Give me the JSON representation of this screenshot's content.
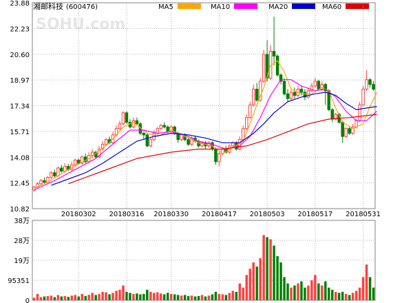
{
  "header": {
    "stock_name": "湘邮科技",
    "stock_code": "(600476)",
    "watermark": "SOHU.com"
  },
  "legend": [
    {
      "label": "MA5",
      "color": "#FFA500"
    },
    {
      "label": "MA10",
      "color": "#FF00FF"
    },
    {
      "label": "MA20",
      "color": "#0000CC"
    },
    {
      "label": "MA60",
      "color": "#E00000"
    }
  ],
  "colors": {
    "up": "#FF4040",
    "down": "#008000",
    "grid": "#B0B0B0",
    "frame": "#808080"
  },
  "chart_data": [
    {
      "type": "candlestick",
      "title": "",
      "ylim": [
        10.82,
        23.88
      ],
      "y_ticks": [
        "23.88",
        "22.23",
        "20.60",
        "18.97",
        "17.34",
        "15.71",
        "14.08",
        "12.45",
        "10.82"
      ],
      "x_ticks": [
        {
          "label": "20180302",
          "index": 13
        },
        {
          "label": "20180316",
          "index": 27
        },
        {
          "label": "20180330",
          "index": 40
        },
        {
          "label": "20180417",
          "index": 54
        },
        {
          "label": "20180503",
          "index": 68
        },
        {
          "label": "20180517",
          "index": 82
        },
        {
          "label": "20180531",
          "index": 96
        }
      ],
      "candles": [
        [
          12.0,
          12.2,
          11.9,
          12.25
        ],
        [
          12.2,
          12.4,
          12.1,
          12.5
        ],
        [
          12.4,
          12.6,
          12.3,
          12.7
        ],
        [
          12.6,
          12.5,
          12.4,
          12.8
        ],
        [
          12.5,
          12.8,
          12.45,
          12.9
        ],
        [
          12.8,
          13.1,
          12.7,
          13.2
        ],
        [
          13.1,
          12.9,
          12.8,
          13.3
        ],
        [
          12.9,
          13.4,
          12.85,
          13.5
        ],
        [
          13.4,
          13.2,
          13.1,
          13.6
        ],
        [
          13.2,
          13.5,
          13.1,
          13.7
        ],
        [
          13.5,
          13.3,
          13.2,
          13.65
        ],
        [
          13.3,
          13.6,
          13.2,
          13.8
        ],
        [
          13.6,
          13.9,
          13.5,
          14.0
        ],
        [
          13.9,
          13.7,
          13.6,
          14.0
        ],
        [
          13.7,
          14.1,
          13.6,
          14.2
        ],
        [
          14.1,
          13.8,
          13.7,
          14.3
        ],
        [
          13.8,
          14.2,
          13.7,
          14.4
        ],
        [
          14.2,
          14.4,
          14.0,
          14.6
        ],
        [
          14.4,
          14.1,
          14.0,
          14.5
        ],
        [
          14.1,
          14.6,
          14.0,
          14.8
        ],
        [
          14.6,
          14.9,
          14.5,
          15.1
        ],
        [
          14.9,
          15.2,
          14.8,
          15.3
        ],
        [
          15.2,
          15.0,
          14.9,
          15.4
        ],
        [
          15.0,
          15.5,
          14.9,
          15.7
        ],
        [
          15.5,
          15.9,
          15.4,
          16.1
        ],
        [
          15.9,
          16.2,
          15.8,
          16.4
        ],
        [
          16.2,
          16.9,
          16.1,
          17.0
        ],
        [
          16.9,
          16.3,
          16.2,
          17.0
        ],
        [
          16.3,
          16.0,
          15.9,
          16.5
        ],
        [
          16.0,
          16.4,
          15.9,
          16.6
        ],
        [
          16.4,
          16.2,
          16.1,
          16.6
        ],
        [
          16.2,
          15.6,
          15.5,
          16.3
        ],
        [
          15.6,
          15.5,
          15.2,
          15.7
        ],
        [
          15.5,
          14.8,
          14.7,
          15.6
        ],
        [
          14.8,
          15.2,
          14.7,
          15.3
        ],
        [
          15.2,
          15.6,
          15.1,
          15.8
        ],
        [
          15.6,
          15.9,
          15.5,
          16.0
        ],
        [
          15.9,
          16.1,
          15.8,
          16.2
        ],
        [
          16.1,
          16.0,
          15.9,
          16.3
        ],
        [
          16.0,
          15.7,
          15.6,
          16.1
        ],
        [
          15.7,
          16.0,
          15.6,
          16.1
        ],
        [
          16.0,
          15.6,
          15.5,
          16.1
        ],
        [
          15.6,
          15.2,
          15.0,
          15.7
        ],
        [
          15.2,
          15.5,
          15.1,
          15.6
        ],
        [
          15.5,
          15.2,
          15.1,
          15.6
        ],
        [
          15.2,
          14.9,
          14.8,
          15.3
        ],
        [
          14.9,
          15.3,
          14.8,
          15.4
        ],
        [
          15.3,
          15.1,
          15.0,
          15.4
        ],
        [
          15.1,
          14.8,
          14.7,
          15.2
        ],
        [
          14.8,
          15.0,
          14.7,
          15.1
        ],
        [
          15.0,
          14.8,
          14.6,
          15.1
        ],
        [
          14.8,
          15.0,
          14.7,
          15.1
        ],
        [
          15.0,
          14.6,
          14.5,
          15.1
        ],
        [
          14.6,
          13.8,
          13.6,
          14.7
        ],
        [
          13.8,
          14.3,
          13.5,
          14.4
        ],
        [
          14.3,
          14.6,
          14.2,
          14.7
        ],
        [
          14.6,
          14.4,
          14.3,
          14.8
        ],
        [
          14.4,
          14.8,
          14.3,
          14.9
        ],
        [
          14.8,
          15.0,
          14.7,
          15.1
        ],
        [
          15.0,
          14.6,
          14.5,
          15.1
        ],
        [
          14.6,
          15.2,
          14.5,
          15.4
        ],
        [
          15.2,
          15.9,
          15.1,
          16.1
        ],
        [
          15.9,
          16.6,
          15.8,
          16.8
        ],
        [
          16.6,
          17.4,
          16.5,
          17.6
        ],
        [
          17.4,
          18.4,
          17.3,
          18.7
        ],
        [
          18.4,
          17.7,
          17.6,
          18.8
        ],
        [
          17.7,
          18.9,
          17.6,
          19.1
        ],
        [
          18.9,
          20.6,
          18.8,
          20.9
        ],
        [
          20.6,
          19.1,
          18.9,
          21.5
        ],
        [
          19.1,
          20.8,
          19.0,
          21.2
        ],
        [
          20.8,
          20.5,
          19.9,
          23.0
        ],
        [
          20.5,
          19.3,
          19.2,
          20.6
        ],
        [
          19.3,
          18.9,
          18.7,
          19.4
        ],
        [
          18.9,
          18.1,
          18.0,
          19.1
        ],
        [
          18.1,
          17.8,
          17.6,
          18.4
        ],
        [
          17.8,
          18.2,
          17.7,
          18.4
        ],
        [
          18.2,
          18.0,
          17.8,
          18.5
        ],
        [
          18.0,
          18.4,
          17.9,
          18.6
        ],
        [
          18.4,
          18.2,
          18.0,
          18.6
        ],
        [
          18.2,
          17.9,
          17.7,
          18.4
        ],
        [
          17.9,
          18.3,
          17.8,
          18.5
        ],
        [
          18.3,
          18.6,
          18.2,
          18.8
        ],
        [
          18.6,
          18.9,
          18.5,
          19.1
        ],
        [
          18.9,
          18.4,
          18.3,
          19.0
        ],
        [
          18.4,
          18.7,
          18.3,
          18.9
        ],
        [
          18.7,
          18.3,
          17.4,
          18.8
        ],
        [
          18.3,
          17.1,
          17.0,
          18.4
        ],
        [
          17.1,
          16.5,
          16.3,
          17.2
        ],
        [
          16.5,
          16.8,
          16.4,
          16.9
        ],
        [
          16.8,
          16.3,
          16.2,
          16.9
        ],
        [
          16.3,
          15.4,
          15.0,
          16.4
        ],
        [
          15.4,
          15.9,
          15.3,
          16.0
        ],
        [
          15.9,
          15.6,
          15.5,
          16.0
        ],
        [
          15.6,
          16.0,
          15.5,
          16.2
        ],
        [
          16.0,
          16.4,
          15.9,
          16.5
        ],
        [
          16.4,
          17.4,
          16.3,
          17.6
        ],
        [
          17.4,
          18.4,
          17.3,
          18.6
        ],
        [
          18.4,
          19.0,
          18.3,
          19.6
        ],
        [
          19.0,
          18.7,
          18.5,
          19.1
        ],
        [
          18.7,
          18.4,
          18.3,
          18.9
        ]
      ],
      "ma": {
        "MA5": [
          [
            0,
            12.1
          ],
          [
            4,
            12.5
          ],
          [
            10,
            13.3
          ],
          [
            16,
            14.0
          ],
          [
            22,
            15.0
          ],
          [
            26,
            16.0
          ],
          [
            29,
            16.3
          ],
          [
            33,
            15.6
          ],
          [
            36,
            15.4
          ],
          [
            40,
            15.8
          ],
          [
            44,
            15.4
          ],
          [
            48,
            15.0
          ],
          [
            52,
            14.8
          ],
          [
            55,
            14.3
          ],
          [
            58,
            14.7
          ],
          [
            61,
            15.1
          ],
          [
            63,
            16.2
          ],
          [
            65,
            17.4
          ],
          [
            67,
            18.5
          ],
          [
            69,
            19.9
          ],
          [
            71,
            20.2
          ],
          [
            73,
            19.5
          ],
          [
            75,
            18.4
          ],
          [
            78,
            18.1
          ],
          [
            81,
            18.1
          ],
          [
            84,
            18.5
          ],
          [
            86,
            18.3
          ],
          [
            88,
            17.2
          ],
          [
            90,
            16.3
          ],
          [
            93,
            15.9
          ],
          [
            96,
            16.2
          ],
          [
            98,
            17.3
          ],
          [
            100,
            18.2
          ]
        ],
        "MA10": [
          [
            0,
            12.0
          ],
          [
            6,
            12.6
          ],
          [
            12,
            13.3
          ],
          [
            18,
            14.0
          ],
          [
            24,
            15.1
          ],
          [
            28,
            15.8
          ],
          [
            32,
            15.8
          ],
          [
            36,
            15.6
          ],
          [
            40,
            15.7
          ],
          [
            44,
            15.5
          ],
          [
            48,
            15.1
          ],
          [
            52,
            14.9
          ],
          [
            56,
            14.6
          ],
          [
            60,
            14.8
          ],
          [
            63,
            15.4
          ],
          [
            66,
            16.6
          ],
          [
            69,
            18.0
          ],
          [
            72,
            19.0
          ],
          [
            75,
            19.0
          ],
          [
            78,
            18.6
          ],
          [
            82,
            18.3
          ],
          [
            85,
            18.4
          ],
          [
            88,
            17.9
          ],
          [
            91,
            17.0
          ],
          [
            94,
            16.4
          ],
          [
            97,
            16.4
          ],
          [
            100,
            17.0
          ]
        ],
        "MA20": [
          [
            5,
            12.3
          ],
          [
            10,
            12.7
          ],
          [
            15,
            13.1
          ],
          [
            20,
            13.7
          ],
          [
            25,
            14.4
          ],
          [
            30,
            15.1
          ],
          [
            35,
            15.4
          ],
          [
            40,
            15.6
          ],
          [
            45,
            15.5
          ],
          [
            50,
            15.3
          ],
          [
            55,
            15.0
          ],
          [
            60,
            15.0
          ],
          [
            64,
            15.6
          ],
          [
            67,
            16.2
          ],
          [
            70,
            16.9
          ],
          [
            74,
            17.6
          ],
          [
            78,
            17.9
          ],
          [
            82,
            18.1
          ],
          [
            85,
            18.2
          ],
          [
            88,
            18.0
          ],
          [
            91,
            17.5
          ],
          [
            94,
            17.1
          ],
          [
            97,
            17.2
          ],
          [
            100,
            17.3
          ]
        ],
        "MA60": [
          [
            10,
            12.4
          ],
          [
            20,
            13.2
          ],
          [
            30,
            14.0
          ],
          [
            40,
            14.4
          ],
          [
            48,
            14.6
          ],
          [
            55,
            14.6
          ],
          [
            62,
            14.8
          ],
          [
            68,
            15.2
          ],
          [
            74,
            15.7
          ],
          [
            80,
            16.2
          ],
          [
            86,
            16.5
          ],
          [
            92,
            16.6
          ],
          [
            100,
            16.8
          ]
        ]
      }
    },
    {
      "type": "bar",
      "title": "",
      "y_ticks": [
        "38万",
        "28万",
        "19万",
        "95351",
        "0"
      ],
      "ylim": [
        0,
        380000
      ],
      "volumes": [
        12000,
        30000,
        15000,
        18000,
        20000,
        22000,
        15000,
        25000,
        18000,
        20000,
        16000,
        22000,
        25000,
        18000,
        30000,
        20000,
        26000,
        35000,
        25000,
        30000,
        40000,
        38000,
        28000,
        35000,
        45000,
        50000,
        70000,
        40000,
        35000,
        30000,
        32000,
        28000,
        30000,
        50000,
        40000,
        35000,
        38000,
        32000,
        28000,
        35000,
        30000,
        28000,
        25000,
        22000,
        25000,
        20000,
        22000,
        18000,
        20000,
        25000,
        18000,
        22000,
        28000,
        40000,
        30000,
        28000,
        25000,
        35000,
        45000,
        40000,
        80000,
        60000,
        120000,
        150000,
        180000,
        160000,
        200000,
        310000,
        300000,
        290000,
        260000,
        210000,
        180000,
        110000,
        80000,
        60000,
        70000,
        80000,
        90000,
        60000,
        70000,
        95000,
        120000,
        80000,
        70000,
        90000,
        60000,
        50000,
        40000,
        35000,
        40000,
        30000,
        25000,
        35000,
        45000,
        60000,
        110000,
        170000,
        110000,
        60000
      ]
    }
  ]
}
